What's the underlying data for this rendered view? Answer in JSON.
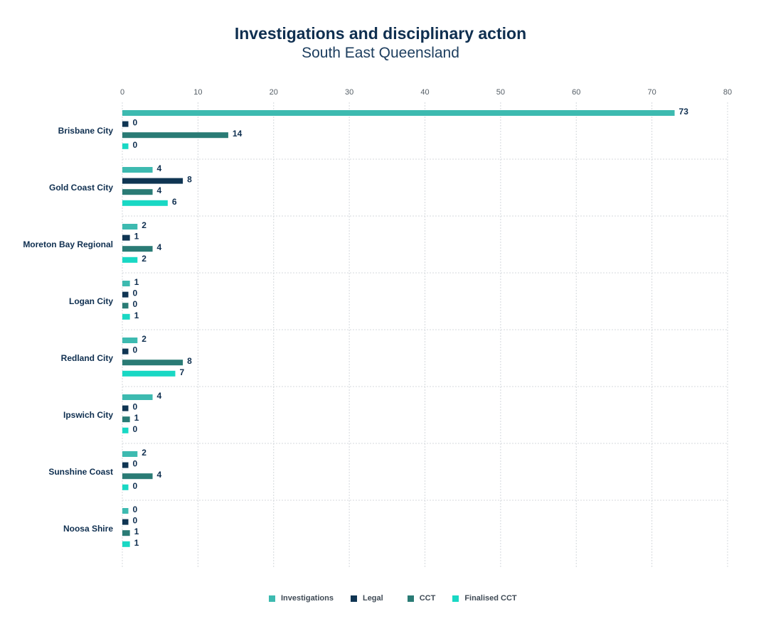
{
  "chart_data": {
    "type": "bar",
    "orientation": "horizontal",
    "title": "Investigations and disciplinary action",
    "subtitle": "South East Queensland",
    "categories": [
      "Brisbane City",
      "Gold Coast City",
      "Moreton Bay Regional",
      "Logan City",
      "Redland City",
      "Ipswich City",
      "Sunshine Coast",
      "Noosa Shire"
    ],
    "series": [
      {
        "name": "Investigations",
        "color": "#3dbab0",
        "values": [
          73,
          4,
          2,
          1,
          2,
          4,
          2,
          0
        ]
      },
      {
        "name": "Legal",
        "color": "#0f3553",
        "values": [
          0,
          8,
          1,
          0,
          0,
          0,
          0,
          0
        ]
      },
      {
        "name": "CCT",
        "color": "#2a7b75",
        "values": [
          14,
          4,
          4,
          0,
          8,
          1,
          4,
          1
        ]
      },
      {
        "name": "Finalised CCT",
        "color": "#19d8c4",
        "values": [
          0,
          6,
          2,
          1,
          7,
          0,
          0,
          1
        ]
      }
    ],
    "xlim": [
      0,
      80
    ],
    "xticks": [
      "0",
      "10",
      "20",
      "30",
      "40",
      "50",
      "60",
      "70",
      "80"
    ],
    "xaxis_position": "top",
    "grid": true,
    "data_labels": true,
    "legend_position": "bottom"
  }
}
